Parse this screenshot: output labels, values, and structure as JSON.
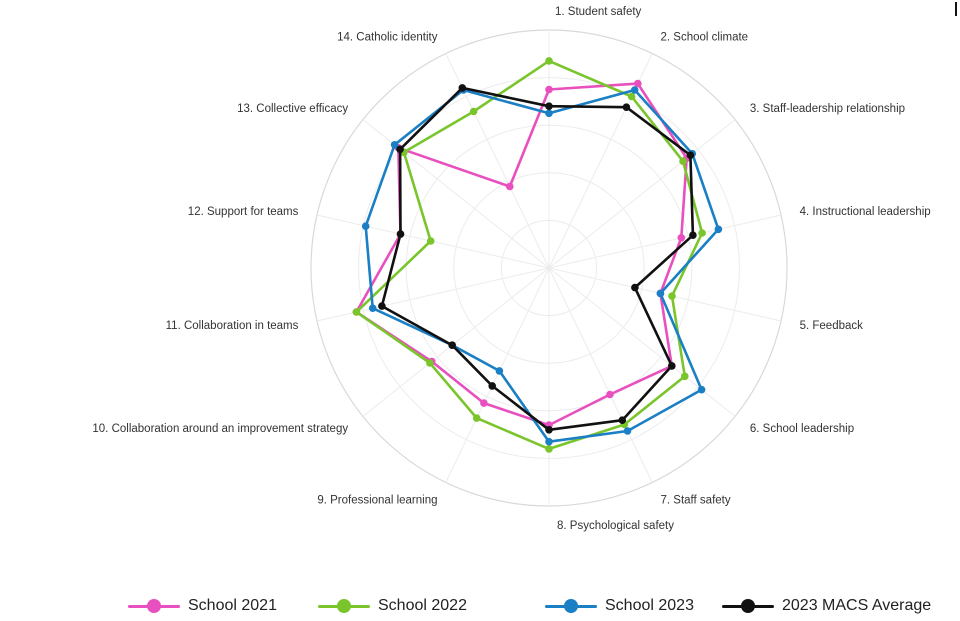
{
  "chart_data": {
    "type": "radar",
    "title": "",
    "axes": [
      "1. Student safety",
      "2. School climate",
      "3. Staff-leadership relationship",
      "4. Instructional leadership",
      "5. Feedback",
      "6. School leadership",
      "7. Staff safety",
      "8. Psychological safety",
      "9. Professional learning",
      "10. Collaboration around an improvement strategy",
      "11. Collaboration in teams",
      "12. Support for teams",
      "13. Collective efficacy",
      "14. Catholic identity"
    ],
    "rlim": [
      0,
      100
    ],
    "grid": true,
    "legend_position": "bottom",
    "series": [
      {
        "name": "School 2021",
        "color": "#e84fbf",
        "values": [
          75,
          86,
          74,
          57,
          48,
          66,
          59,
          66,
          63,
          63,
          83,
          64,
          81,
          38
        ]
      },
      {
        "name": "School 2022",
        "color": "#7ac52c",
        "values": [
          87,
          80,
          72,
          66,
          53,
          73,
          73,
          76,
          70,
          64,
          83,
          51,
          78,
          73
        ]
      },
      {
        "name": "School 2023",
        "color": "#1a7fc4",
        "values": [
          65,
          83,
          77,
          73,
          48,
          82,
          76,
          73,
          48,
          52,
          76,
          79,
          83,
          83
        ]
      },
      {
        "name": "2023 MACS Average",
        "color": "#111111",
        "values": [
          68,
          75,
          76,
          62,
          37,
          66,
          71,
          68,
          55,
          52,
          72,
          64,
          80,
          84
        ]
      }
    ]
  }
}
